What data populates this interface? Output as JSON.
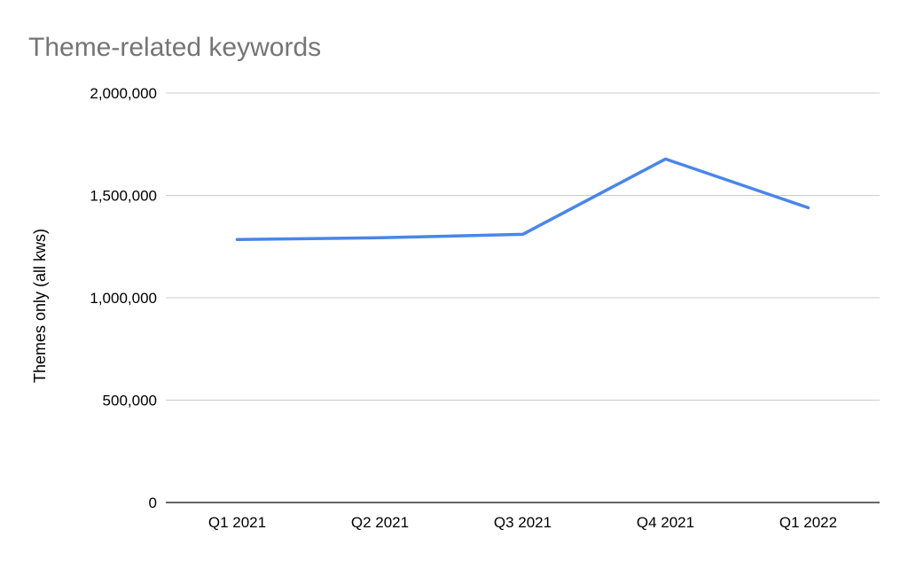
{
  "chart_data": {
    "type": "line",
    "title": "Theme-related keywords",
    "xlabel": "",
    "ylabel": "Themes only (all kws)",
    "categories": [
      "Q1 2021",
      "Q2 2021",
      "Q3 2021",
      "Q4 2021",
      "Q1 2022"
    ],
    "series": [
      {
        "values": [
          1285000,
          1293000,
          1310000,
          1678000,
          1440000
        ],
        "color": "#4a86e8"
      }
    ],
    "ylim": [
      0,
      2000000
    ],
    "yticks": [
      0,
      500000,
      1000000,
      1500000,
      2000000
    ],
    "ytick_labels": [
      "0",
      "500,000",
      "1,000,000",
      "1,500,000",
      "2,000,000"
    ],
    "grid": true,
    "legend": "none"
  }
}
